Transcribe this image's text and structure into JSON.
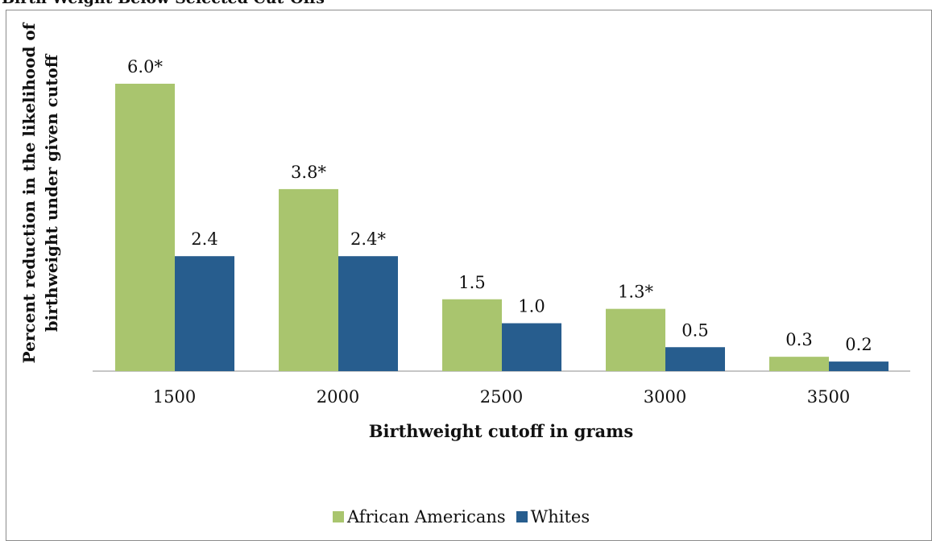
{
  "page_title": "Birth Weight Below Selected Cut-Offs",
  "chart_data": {
    "type": "bar",
    "title": "",
    "xlabel": "Birthweight cutoff in grams",
    "ylabel": "Percent reduction in the likelihood of birthweight under given cutoff",
    "ylabel_lines": [
      "Percent reduction in the likelihood of",
      "birthweight under given cutoff"
    ],
    "categories": [
      "1500",
      "2000",
      "2500",
      "3000",
      "3500"
    ],
    "ylim": [
      0,
      6.0
    ],
    "grid": false,
    "legend_position": "bottom",
    "series": [
      {
        "name": "African Americans",
        "color": "#a9c56e",
        "values": [
          6.0,
          3.8,
          1.5,
          1.3,
          0.3
        ],
        "labels": [
          "6.0*",
          "3.8*",
          "1.5",
          "1.3*",
          "0.3"
        ]
      },
      {
        "name": "Whites",
        "color": "#275d8e",
        "values": [
          2.4,
          2.4,
          1.0,
          0.5,
          0.2
        ],
        "labels": [
          "2.4",
          "2.4*",
          "1.0",
          "0.5",
          "0.2"
        ]
      }
    ]
  }
}
